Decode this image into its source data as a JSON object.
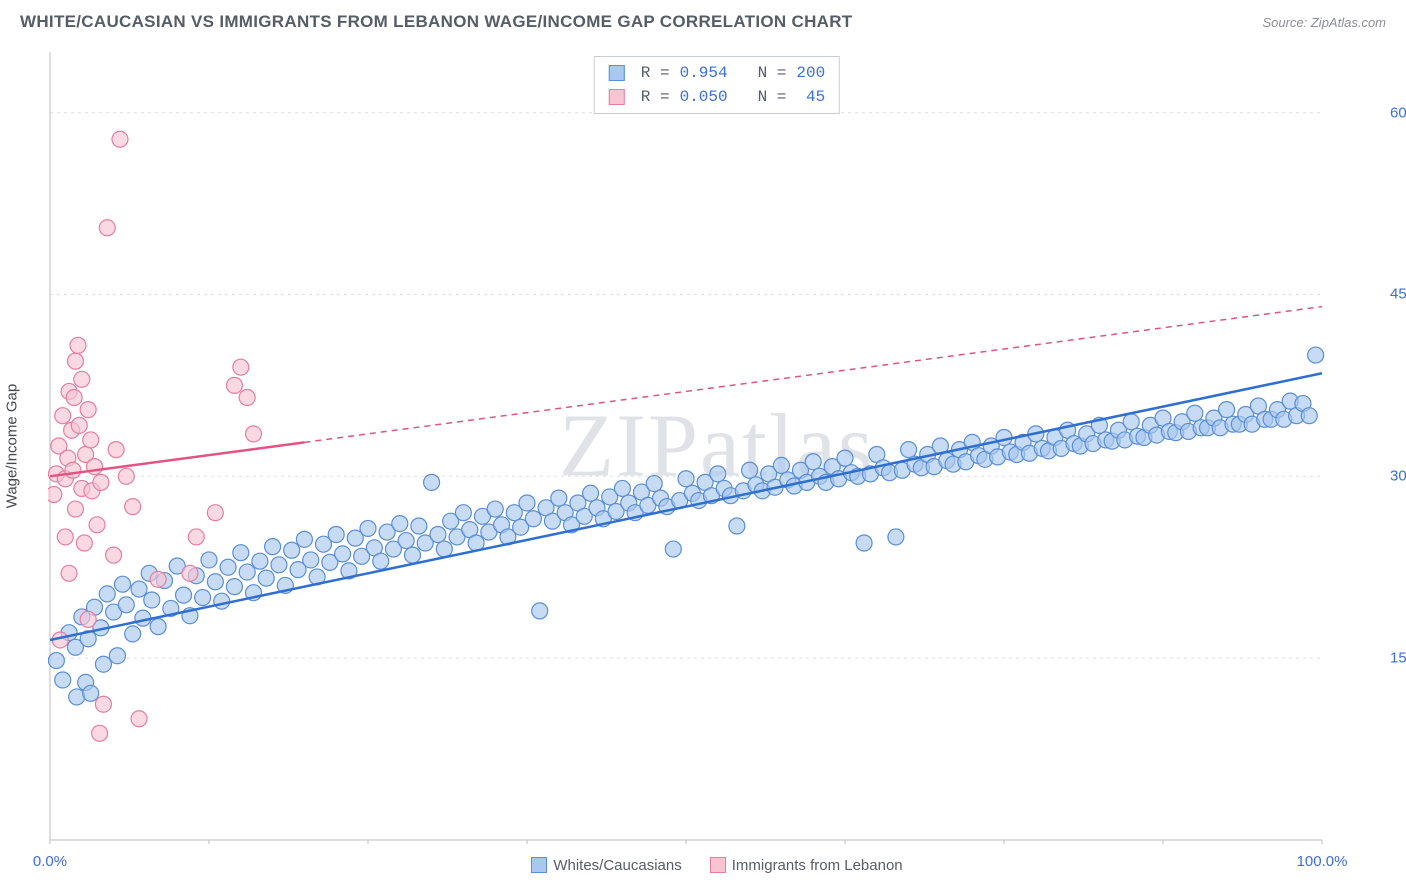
{
  "header": {
    "title": "WHITE/CAUCASIAN VS IMMIGRANTS FROM LEBANON WAGE/INCOME GAP CORRELATION CHART",
    "source": "Source: ZipAtlas.com"
  },
  "chart": {
    "type": "scatter",
    "ylabel": "Wage/Income Gap",
    "background_color": "#ffffff",
    "grid_color": "#dcdfe4",
    "axis_color": "#b9bec6",
    "xlim": [
      0,
      100
    ],
    "ylim": [
      0,
      65
    ],
    "xticks": [
      0,
      12.5,
      25,
      37.5,
      50,
      62.5,
      75,
      87.5,
      100
    ],
    "xtick_labels": {
      "0": "0.0%",
      "100": "100.0%"
    },
    "yticks": [
      15,
      30,
      45,
      60
    ],
    "ytick_labels": {
      "15": "15.0%",
      "30": "30.0%",
      "45": "45.0%",
      "60": "60.0%"
    },
    "marker_radius": 8,
    "marker_stroke_width": 1.2,
    "trend_line_width": 2.5,
    "series": [
      {
        "id": "whites",
        "label": "Whites/Caucasians",
        "fill": "#a9c7ef",
        "stroke": "#5a8fd6",
        "line_color": "#2f6fd0",
        "r": 0.954,
        "n": 200,
        "trend": {
          "x1": 0,
          "y1": 16.5,
          "x2": 100,
          "y2": 38.5,
          "dash": null,
          "dash_after_x": null
        },
        "points": [
          [
            0.5,
            14.8
          ],
          [
            1,
            13.2
          ],
          [
            1.5,
            17.1
          ],
          [
            2,
            15.9
          ],
          [
            2.1,
            11.8
          ],
          [
            2.5,
            18.4
          ],
          [
            2.8,
            13.0
          ],
          [
            3,
            16.6
          ],
          [
            3.2,
            12.1
          ],
          [
            3.5,
            19.2
          ],
          [
            4,
            17.5
          ],
          [
            4.2,
            14.5
          ],
          [
            4.5,
            20.3
          ],
          [
            5,
            18.8
          ],
          [
            5.3,
            15.2
          ],
          [
            5.7,
            21.1
          ],
          [
            6,
            19.4
          ],
          [
            6.5,
            17.0
          ],
          [
            7,
            20.7
          ],
          [
            7.3,
            18.3
          ],
          [
            7.8,
            22.0
          ],
          [
            8,
            19.8
          ],
          [
            8.5,
            17.6
          ],
          [
            9,
            21.4
          ],
          [
            9.5,
            19.1
          ],
          [
            10,
            22.6
          ],
          [
            10.5,
            20.2
          ],
          [
            11,
            18.5
          ],
          [
            11.5,
            21.8
          ],
          [
            12,
            20.0
          ],
          [
            12.5,
            23.1
          ],
          [
            13,
            21.3
          ],
          [
            13.5,
            19.7
          ],
          [
            14,
            22.5
          ],
          [
            14.5,
            20.9
          ],
          [
            15,
            23.7
          ],
          [
            15.5,
            22.1
          ],
          [
            16,
            20.4
          ],
          [
            16.5,
            23.0
          ],
          [
            17,
            21.6
          ],
          [
            17.5,
            24.2
          ],
          [
            18,
            22.7
          ],
          [
            18.5,
            21.0
          ],
          [
            19,
            23.9
          ],
          [
            19.5,
            22.3
          ],
          [
            20,
            24.8
          ],
          [
            20.5,
            23.1
          ],
          [
            21,
            21.7
          ],
          [
            21.5,
            24.4
          ],
          [
            22,
            22.9
          ],
          [
            22.5,
            25.2
          ],
          [
            23,
            23.6
          ],
          [
            23.5,
            22.2
          ],
          [
            24,
            24.9
          ],
          [
            24.5,
            23.4
          ],
          [
            25,
            25.7
          ],
          [
            25.5,
            24.1
          ],
          [
            26,
            23.0
          ],
          [
            26.5,
            25.4
          ],
          [
            27,
            24.0
          ],
          [
            27.5,
            26.1
          ],
          [
            28,
            24.7
          ],
          [
            28.5,
            23.5
          ],
          [
            29,
            25.9
          ],
          [
            29.5,
            24.5
          ],
          [
            30,
            29.5
          ],
          [
            30.5,
            25.2
          ],
          [
            31,
            24.0
          ],
          [
            31.5,
            26.3
          ],
          [
            32,
            25.0
          ],
          [
            32.5,
            27.0
          ],
          [
            33,
            25.6
          ],
          [
            33.5,
            24.5
          ],
          [
            34,
            26.7
          ],
          [
            34.5,
            25.4
          ],
          [
            35,
            27.3
          ],
          [
            35.5,
            26.0
          ],
          [
            36,
            25.0
          ],
          [
            36.5,
            27.0
          ],
          [
            37,
            25.8
          ],
          [
            37.5,
            27.8
          ],
          [
            38,
            26.5
          ],
          [
            38.5,
            18.9
          ],
          [
            39,
            27.4
          ],
          [
            39.5,
            26.3
          ],
          [
            40,
            28.2
          ],
          [
            40.5,
            27.0
          ],
          [
            41,
            26.0
          ],
          [
            41.5,
            27.8
          ],
          [
            42,
            26.7
          ],
          [
            42.5,
            28.6
          ],
          [
            43,
            27.4
          ],
          [
            43.5,
            26.5
          ],
          [
            44,
            28.3
          ],
          [
            44.5,
            27.1
          ],
          [
            45,
            29.0
          ],
          [
            45.5,
            27.8
          ],
          [
            46,
            27.0
          ],
          [
            46.5,
            28.7
          ],
          [
            47,
            27.6
          ],
          [
            47.5,
            29.4
          ],
          [
            48,
            28.2
          ],
          [
            48.5,
            27.5
          ],
          [
            49,
            24.0
          ],
          [
            49.5,
            28.0
          ],
          [
            50,
            29.8
          ],
          [
            50.5,
            28.6
          ],
          [
            51,
            28.0
          ],
          [
            51.5,
            29.5
          ],
          [
            52,
            28.4
          ],
          [
            52.5,
            30.2
          ],
          [
            53,
            29.0
          ],
          [
            53.5,
            28.4
          ],
          [
            54,
            25.9
          ],
          [
            54.5,
            28.8
          ],
          [
            55,
            30.5
          ],
          [
            55.5,
            29.3
          ],
          [
            56,
            28.8
          ],
          [
            56.5,
            30.2
          ],
          [
            57,
            29.1
          ],
          [
            57.5,
            30.9
          ],
          [
            58,
            29.7
          ],
          [
            58.5,
            29.2
          ],
          [
            59,
            30.5
          ],
          [
            59.5,
            29.5
          ],
          [
            60,
            31.2
          ],
          [
            60.5,
            30.0
          ],
          [
            61,
            29.5
          ],
          [
            61.5,
            30.8
          ],
          [
            62,
            29.8
          ],
          [
            62.5,
            31.5
          ],
          [
            63,
            30.3
          ],
          [
            63.5,
            30.0
          ],
          [
            64,
            24.5
          ],
          [
            64.5,
            30.2
          ],
          [
            65,
            31.8
          ],
          [
            65.5,
            30.7
          ],
          [
            66,
            30.3
          ],
          [
            66.5,
            25.0
          ],
          [
            67,
            30.5
          ],
          [
            67.5,
            32.2
          ],
          [
            68,
            31.0
          ],
          [
            68.5,
            30.7
          ],
          [
            69,
            31.8
          ],
          [
            69.5,
            30.8
          ],
          [
            70,
            32.5
          ],
          [
            70.5,
            31.3
          ],
          [
            71,
            31.0
          ],
          [
            71.5,
            32.2
          ],
          [
            72,
            31.2
          ],
          [
            72.5,
            32.8
          ],
          [
            73,
            31.7
          ],
          [
            73.5,
            31.4
          ],
          [
            74,
            32.5
          ],
          [
            74.5,
            31.6
          ],
          [
            75,
            33.2
          ],
          [
            75.5,
            32.0
          ],
          [
            76,
            31.8
          ],
          [
            76.5,
            32.8
          ],
          [
            77,
            31.9
          ],
          [
            77.5,
            33.5
          ],
          [
            78,
            32.3
          ],
          [
            78.5,
            32.1
          ],
          [
            79,
            33.2
          ],
          [
            79.5,
            32.3
          ],
          [
            80,
            33.8
          ],
          [
            80.5,
            32.7
          ],
          [
            81,
            32.5
          ],
          [
            81.5,
            33.5
          ],
          [
            82,
            32.7
          ],
          [
            82.5,
            34.2
          ],
          [
            83,
            33.0
          ],
          [
            83.5,
            32.9
          ],
          [
            84,
            33.8
          ],
          [
            84.5,
            33.0
          ],
          [
            85,
            34.5
          ],
          [
            85.5,
            33.3
          ],
          [
            86,
            33.2
          ],
          [
            86.5,
            34.2
          ],
          [
            87,
            33.4
          ],
          [
            87.5,
            34.8
          ],
          [
            88,
            33.7
          ],
          [
            88.5,
            33.6
          ],
          [
            89,
            34.5
          ],
          [
            89.5,
            33.7
          ],
          [
            90,
            35.2
          ],
          [
            90.5,
            34.0
          ],
          [
            91,
            34.0
          ],
          [
            91.5,
            34.8
          ],
          [
            92,
            34.0
          ],
          [
            92.5,
            35.5
          ],
          [
            93,
            34.3
          ],
          [
            93.5,
            34.3
          ],
          [
            94,
            35.1
          ],
          [
            94.5,
            34.3
          ],
          [
            95,
            35.8
          ],
          [
            95.5,
            34.7
          ],
          [
            96,
            34.7
          ],
          [
            96.5,
            35.5
          ],
          [
            97,
            34.7
          ],
          [
            97.5,
            36.2
          ],
          [
            98,
            35.0
          ],
          [
            98.5,
            36.0
          ],
          [
            99,
            35.0
          ],
          [
            99.5,
            40.0
          ]
        ]
      },
      {
        "id": "lebanon",
        "label": "Immigrants from Lebanon",
        "fill": "#f7c4d2",
        "stroke": "#e57fa0",
        "line_color": "#e25383",
        "r": 0.05,
        "n": 45,
        "trend": {
          "x1": 0,
          "y1": 30.0,
          "x2": 100,
          "y2": 44.0,
          "dash": "6,5",
          "dash_after_x": 20
        },
        "points": [
          [
            0.3,
            28.5
          ],
          [
            0.5,
            30.2
          ],
          [
            0.7,
            32.5
          ],
          [
            0.8,
            16.5
          ],
          [
            1.0,
            35.0
          ],
          [
            1.2,
            25.0
          ],
          [
            1.2,
            29.8
          ],
          [
            1.4,
            31.5
          ],
          [
            1.5,
            37.0
          ],
          [
            1.5,
            22.0
          ],
          [
            1.7,
            33.8
          ],
          [
            1.8,
            30.5
          ],
          [
            1.9,
            36.5
          ],
          [
            2.0,
            27.3
          ],
          [
            2.0,
            39.5
          ],
          [
            2.2,
            40.8
          ],
          [
            2.3,
            34.2
          ],
          [
            2.5,
            29.0
          ],
          [
            2.5,
            38.0
          ],
          [
            2.7,
            24.5
          ],
          [
            2.8,
            31.8
          ],
          [
            3.0,
            35.5
          ],
          [
            3.0,
            18.2
          ],
          [
            3.2,
            33.0
          ],
          [
            3.3,
            28.8
          ],
          [
            3.5,
            30.8
          ],
          [
            3.7,
            26.0
          ],
          [
            3.9,
            8.8
          ],
          [
            4.0,
            29.5
          ],
          [
            4.2,
            11.2
          ],
          [
            4.5,
            50.5
          ],
          [
            5.0,
            23.5
          ],
          [
            5.2,
            32.2
          ],
          [
            5.5,
            57.8
          ],
          [
            6.0,
            30.0
          ],
          [
            6.5,
            27.5
          ],
          [
            7.0,
            10.0
          ],
          [
            8.5,
            21.5
          ],
          [
            11.0,
            22.0
          ],
          [
            14.5,
            37.5
          ],
          [
            15.0,
            39.0
          ],
          [
            15.5,
            36.5
          ],
          [
            16.0,
            33.5
          ],
          [
            11.5,
            25.0
          ],
          [
            13.0,
            27.0
          ]
        ]
      }
    ],
    "watermark": "ZIPatlas"
  },
  "top_legend": {
    "r_label": "R =",
    "n_label": "N =",
    "rows": [
      {
        "swatch_fill": "#a9c7ef",
        "swatch_stroke": "#5a8fd6",
        "r": "0.954",
        "n": "200"
      },
      {
        "swatch_fill": "#f7c4d2",
        "swatch_stroke": "#e57fa0",
        "r": "0.050",
        "n": " 45"
      }
    ]
  }
}
